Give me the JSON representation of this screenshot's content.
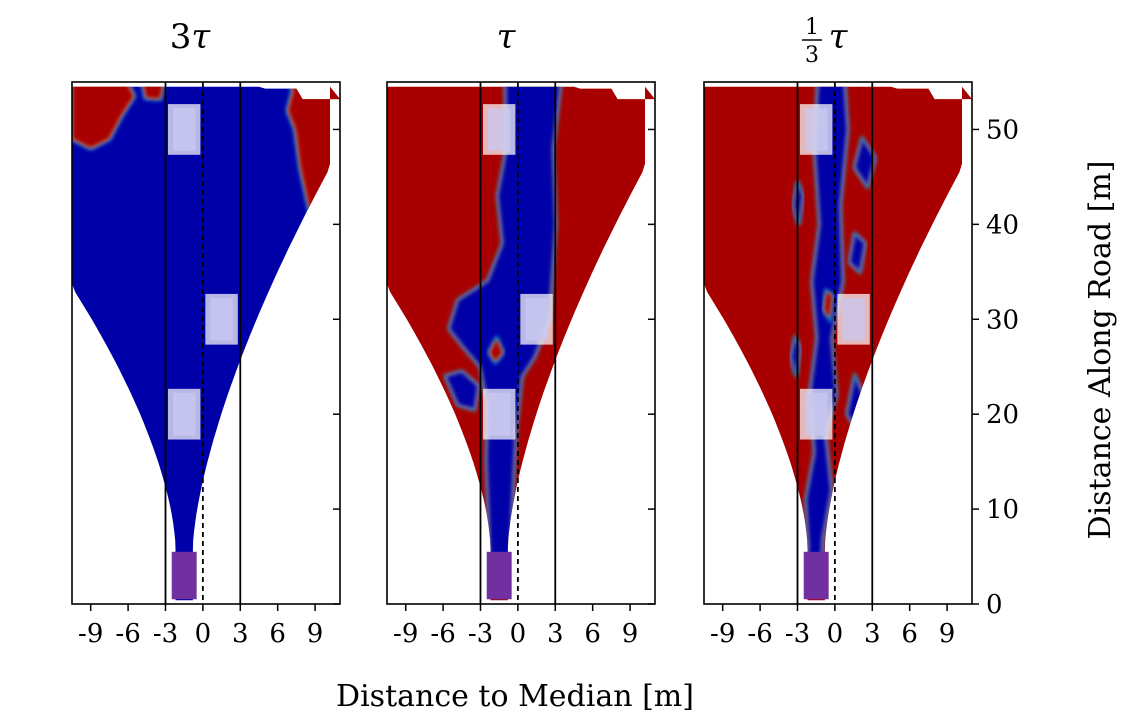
{
  "chart_data": {
    "type": "heatmap",
    "xlabel": "Distance to Median [m]",
    "ylabel": "Distance Along Road [m]",
    "xlim": [
      -10.5,
      11
    ],
    "ylim": [
      0,
      55
    ],
    "x_ticks": [
      -9,
      -6,
      -3,
      0,
      3,
      6,
      9
    ],
    "x_tick_labels": [
      "-9",
      "-6",
      "-3",
      "0",
      "3",
      "6",
      "9"
    ],
    "y_ticks": [
      0,
      10,
      20,
      30,
      40,
      50
    ],
    "y_tick_labels": [
      "0",
      "10",
      "20",
      "30",
      "40",
      "50"
    ],
    "lane_lines_m": [
      -3,
      3
    ],
    "median_line_m": 0,
    "colors": {
      "blue": "#0000a8",
      "red": "#a80000",
      "ego": "#7030a0"
    },
    "ego_vehicle": {
      "x": -1.5,
      "y_min": 0.5,
      "y_max": 5.5,
      "width": 1.8
    },
    "vehicles": [
      {
        "x": -1.5,
        "y": 50,
        "width": 1.8,
        "length": 4.5
      },
      {
        "x": 1.5,
        "y": 30,
        "width": 1.8,
        "length": 4.5
      },
      {
        "x": -1.5,
        "y": 20,
        "width": 1.8,
        "length": 4.5
      }
    ],
    "panels": [
      {
        "title_main": "3",
        "title_tau": "τ",
        "has_fraction": false,
        "pattern": "mostly-blue"
      },
      {
        "title_main": "",
        "title_tau": "τ",
        "has_fraction": false,
        "pattern": "blue-channel"
      },
      {
        "title_main": "",
        "title_tau": "τ",
        "has_fraction": true,
        "fraction_num": "1",
        "fraction_den": "3",
        "pattern": "mostly-red"
      }
    ]
  }
}
